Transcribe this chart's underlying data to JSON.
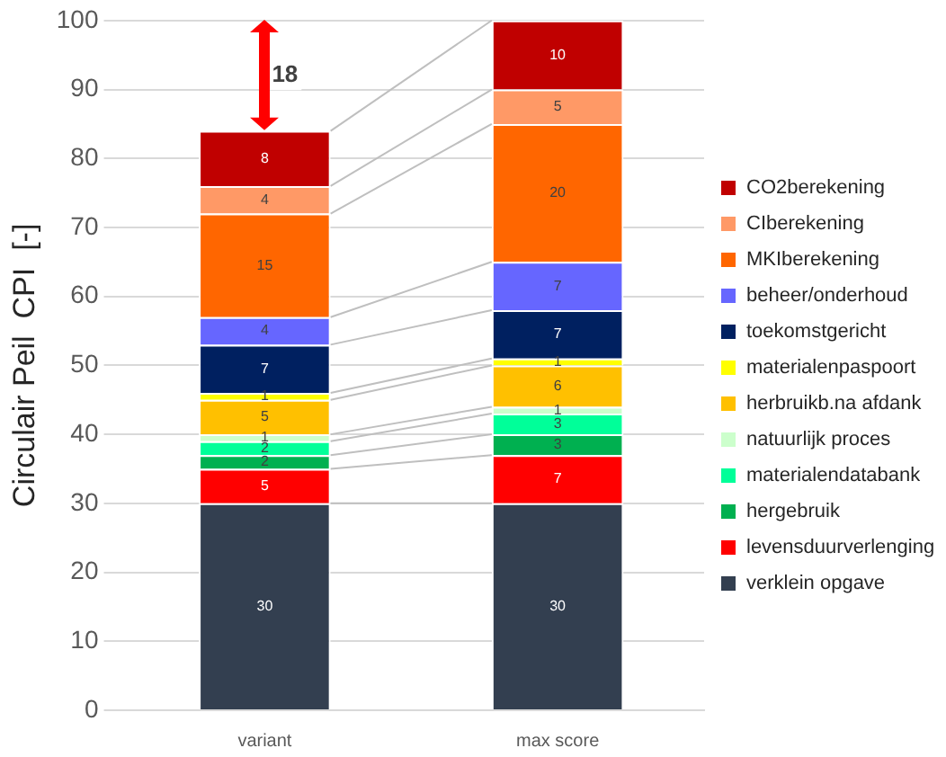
{
  "chart_data": {
    "type": "bar",
    "stacked": true,
    "categories": [
      "variant",
      "max score"
    ],
    "ylabel": "Circulair Peil  CPI  [-]",
    "ylim": [
      0,
      100
    ],
    "yticks": [
      0,
      10,
      20,
      30,
      40,
      50,
      60,
      70,
      80,
      90,
      100
    ],
    "grid": "y",
    "legend": "right",
    "data_labels": true,
    "annotations": [
      "18"
    ],
    "series": [
      {
        "name": "verklein opgave",
        "color": "#333f50",
        "values": [
          30,
          30
        ]
      },
      {
        "name": "levensduurverlenging",
        "color": "#ff0000",
        "values": [
          5,
          7
        ]
      },
      {
        "name": "hergebruik",
        "color": "#00b050",
        "values": [
          2,
          3
        ]
      },
      {
        "name": "materialendatabank",
        "color": "#00ff99",
        "values": [
          2,
          3
        ]
      },
      {
        "name": "natuurlijk proces",
        "color": "#ccffcc",
        "values": [
          1,
          1
        ]
      },
      {
        "name": "herbruikb.na afdank",
        "color": "#ffc000",
        "values": [
          5,
          6
        ]
      },
      {
        "name": "materialenpaspoort",
        "color": "#ffff00",
        "values": [
          1,
          1
        ]
      },
      {
        "name": "toekomstgericht",
        "color": "#002060",
        "values": [
          7,
          7
        ]
      },
      {
        "name": "beheer/onderhoud",
        "color": "#6666ff",
        "values": [
          4,
          7
        ]
      },
      {
        "name": "MKIberekening",
        "color": "#ff6600",
        "values": [
          15,
          20
        ]
      },
      {
        "name": "CIberekening",
        "color": "#ff9966",
        "values": [
          4,
          5
        ]
      },
      {
        "name": "CO2berekening",
        "color": "#c00000",
        "values": [
          8,
          10
        ]
      }
    ]
  }
}
